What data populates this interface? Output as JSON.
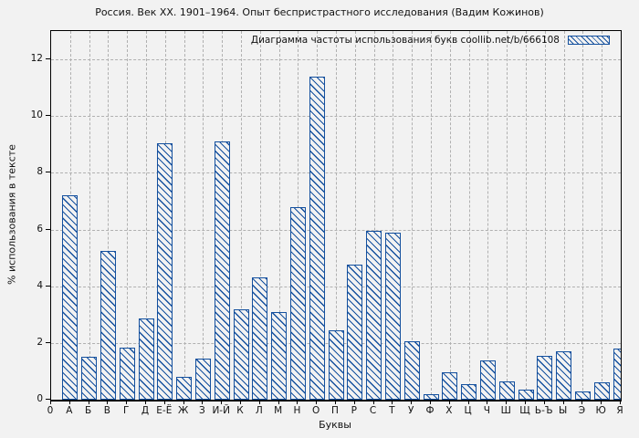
{
  "chart_data": {
    "type": "bar",
    "title": "Россия. Век XX. 1901–1964. Опыт беспристрастного исследования (Вадим Кожинов)",
    "legend_label": "Диаграмма частоты использования букв coollib.net/b/666108",
    "xlabel": "Буквы",
    "ylabel": "% использования в тексте",
    "x_origin_label": "0",
    "categories": [
      "А",
      "Б",
      "В",
      "Г",
      "Д",
      "Е-Ё",
      "Ж",
      "З",
      "И-Й",
      "К",
      "Л",
      "М",
      "Н",
      "О",
      "П",
      "Р",
      "С",
      "Т",
      "У",
      "Ф",
      "Х",
      "Ц",
      "Ч",
      "Ш",
      "Щ",
      "Ь-Ъ",
      "Ы",
      "Э",
      "Ю",
      "Я"
    ],
    "values": [
      7.2,
      1.5,
      5.25,
      1.85,
      2.85,
      9.05,
      0.8,
      1.45,
      9.1,
      3.2,
      4.3,
      3.1,
      6.8,
      11.4,
      2.45,
      4.75,
      5.95,
      5.9,
      2.05,
      0.2,
      0.95,
      0.55,
      1.4,
      0.65,
      0.35,
      1.55,
      1.7,
      0.3,
      0.6,
      1.8
    ],
    "yticks": [
      0,
      2,
      4,
      6,
      8,
      10,
      12
    ],
    "ylim": [
      0,
      13
    ],
    "grid": true,
    "legend_position": "top-right-inside",
    "hatch": "diagonal-backslash",
    "colors": {
      "bar": "#14509e",
      "grid": "#b0b0b0",
      "axis": "#000000",
      "background": "#f2f2f2"
    }
  }
}
